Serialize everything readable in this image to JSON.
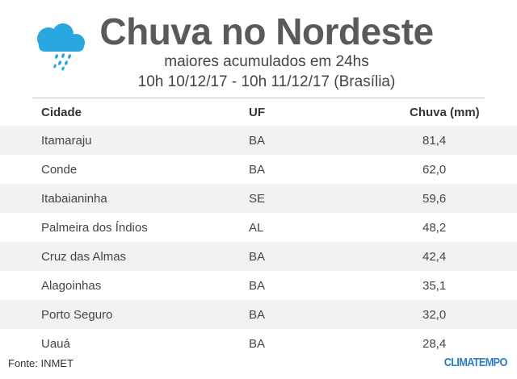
{
  "header": {
    "title": "Chuva no Nordeste",
    "subtitle": "maiores acumulados em 24hs",
    "period": "10h 10/12/17 - 10h 11/12/17 (Brasília)",
    "icon": "rain-cloud-icon",
    "icon_color": "#29a8df"
  },
  "table": {
    "columns": [
      "Cidade",
      "UF",
      "Chuva (mm)"
    ],
    "rows": [
      [
        "Itamaraju",
        "BA",
        "81,4"
      ],
      [
        "Conde",
        "BA",
        "62,0"
      ],
      [
        "Itabaianinha",
        "SE",
        "59,6"
      ],
      [
        "Palmeira dos Índios",
        "AL",
        "48,2"
      ],
      [
        "Cruz das Almas",
        "BA",
        "42,4"
      ],
      [
        "Alagoinhas",
        "BA",
        "35,1"
      ],
      [
        "Porto Seguro",
        "BA",
        "32,0"
      ],
      [
        "Uauá",
        "BA",
        "28,4"
      ]
    ]
  },
  "footer": {
    "source": "Fonte: INMET",
    "logo": "CLIMATEMPO",
    "logo_color": "#2b7ec1"
  }
}
